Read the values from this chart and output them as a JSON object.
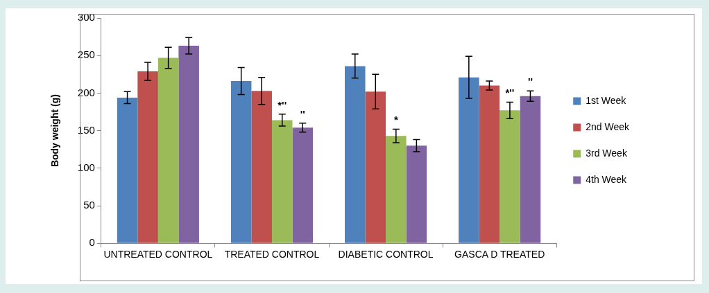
{
  "chart_data": {
    "type": "bar",
    "ylabel": "Body weight (g)",
    "categories": [
      "UNTREATED CONTROL",
      "TREATED CONTROL",
      "DIABETIC CONTROL",
      "GASCA D TREATED"
    ],
    "series": [
      {
        "name": "1st Week",
        "color": "#4f81bd",
        "values": [
          194,
          216,
          236,
          221
        ],
        "errors": [
          8,
          18,
          16,
          28
        ]
      },
      {
        "name": "2nd Week",
        "color": "#c0504d",
        "values": [
          229,
          203,
          202,
          210
        ],
        "errors": [
          12,
          18,
          23,
          6
        ]
      },
      {
        "name": "3rd Week",
        "color": "#9bbb59",
        "values": [
          247,
          164,
          143,
          177
        ],
        "errors": [
          14,
          8,
          9,
          11
        ]
      },
      {
        "name": "4th Week",
        "color": "#8064a2",
        "values": [
          263,
          154,
          130,
          196
        ],
        "errors": [
          11,
          6,
          8,
          7
        ]
      }
    ],
    "ylim": [
      0,
      300
    ],
    "yticks": [
      0,
      50,
      100,
      150,
      200,
      250,
      300
    ],
    "grid": false,
    "legend": "right",
    "annotations": [
      {
        "text": "*''",
        "x": "TREATED CONTROL",
        "y": 180
      },
      {
        "text": "''",
        "x": "TREATED CONTROL",
        "y": 168
      },
      {
        "text": "*",
        "x": "DIABETIC CONTROL",
        "y": 160
      },
      {
        "text": "*''",
        "x": "GASCA D TREATED",
        "y": 196
      },
      {
        "text": "''",
        "x": "GASCA D TREATED",
        "y": 211
      }
    ]
  }
}
